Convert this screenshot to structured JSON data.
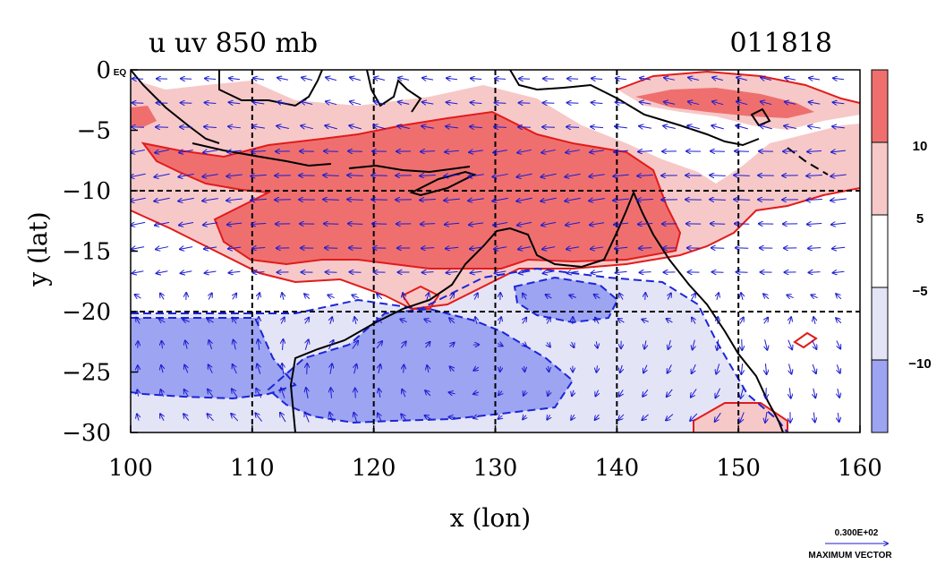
{
  "header": {
    "title": "u uv 850 mb",
    "date_code": "011818"
  },
  "colors": {
    "strong_positive": "#ef6f6f",
    "weak_positive": "#f7c8c8",
    "neutral": "#ffffff",
    "weak_negative": "#e4e4f7",
    "strong_negative": "#9da4f1",
    "positive_contour": "#e21b1b",
    "negative_contour": "#1b26d8",
    "coastline": "#000000",
    "vector": "#1b1bd0",
    "grid": "#000000"
  },
  "chart_data": {
    "type": "map",
    "field": "u",
    "level_hpa": 850,
    "xlabel": "x (lon)",
    "ylabel": "y (lat)",
    "xlim": [
      100,
      160
    ],
    "ylim": [
      -30,
      0
    ],
    "x_ticks": [
      "100",
      "110",
      "120",
      "130",
      "140",
      "150",
      "160"
    ],
    "y_ticks": [
      "0 EQ",
      "−5",
      "−10",
      "−15",
      "−20",
      "−25",
      "−30"
    ],
    "grid_lons": [
      110,
      120,
      130,
      140,
      150
    ],
    "grid_lats": [
      -10,
      -20
    ],
    "grid": true,
    "colorbar": {
      "levels": [
        "10",
        "5",
        "−5",
        "−10"
      ],
      "placement": "right"
    },
    "vector_key": {
      "value": "0.300E+02",
      "label": "MAXIMUM VECTOR"
    }
  }
}
